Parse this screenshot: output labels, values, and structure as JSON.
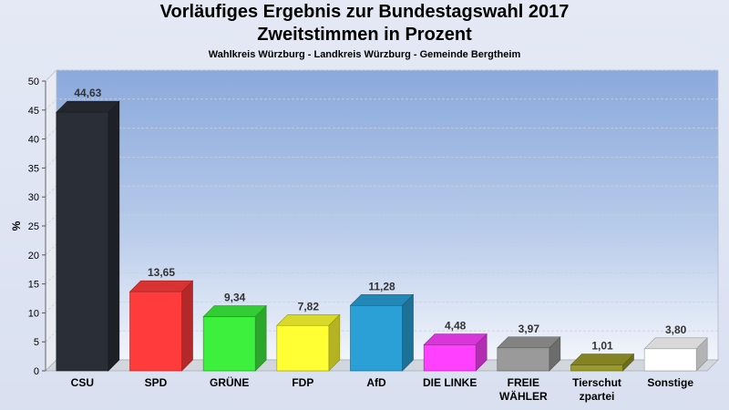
{
  "title": "Vorläufiges Ergebnis zur Bundestagswahl 2017",
  "subtitle": "Zweitstimmen in Prozent",
  "location": "Wahlkreis Würzburg - Landkreis Würzburg - Gemeinde Bergtheim",
  "chart_data": {
    "type": "bar",
    "title": "Vorläufiges Ergebnis zur Bundestagswahl 2017",
    "subtitle": "Zweitstimmen in Prozent",
    "ylabel": "%",
    "ylim": [
      0,
      50
    ],
    "yticks": [
      0,
      5,
      10,
      15,
      20,
      25,
      30,
      35,
      40,
      45,
      50
    ],
    "grid": true,
    "categories": [
      "CSU",
      "SPD",
      "GRÜNE",
      "FDP",
      "AfD",
      "DIE LINKE",
      "FREIE WÄHLER",
      "Tierschutzpartei",
      "Sonstige"
    ],
    "category_lines": [
      [
        "CSU"
      ],
      [
        "SPD"
      ],
      [
        "GRÜNE"
      ],
      [
        "FDP"
      ],
      [
        "AfD"
      ],
      [
        "DIE LINKE"
      ],
      [
        "FREIE",
        "WÄHLER"
      ],
      [
        "Tierschut",
        "zpartei"
      ],
      [
        "Sonstige"
      ]
    ],
    "values": [
      44.63,
      13.65,
      9.34,
      7.82,
      11.28,
      4.48,
      3.97,
      1.01,
      3.8
    ],
    "value_labels": [
      "44,63",
      "13,65",
      "9,34",
      "7,82",
      "11,28",
      "4,48",
      "3,97",
      "1,01",
      "3,80"
    ],
    "colors": [
      "#2a2e36",
      "#ff3b3b",
      "#3df03d",
      "#ffff33",
      "#2aa0d6",
      "#ff40ff",
      "#9a9a9a",
      "#9a9a2a",
      "#ffffff"
    ]
  }
}
